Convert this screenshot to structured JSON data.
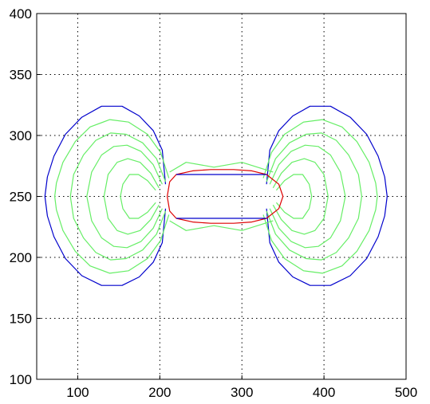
{
  "chart_data": {
    "type": "line",
    "title": "",
    "xlabel": "",
    "ylabel": "",
    "xlim": [
      50,
      500
    ],
    "ylim": [
      100,
      400
    ],
    "grid": true,
    "x_ticks": [
      100,
      200,
      300,
      400,
      500
    ],
    "y_ticks": [
      100,
      150,
      200,
      250,
      300,
      350,
      400
    ],
    "x_tick_labels": [
      "100",
      "200",
      "300",
      "400",
      "500"
    ],
    "y_tick_labels": [
      "100",
      "150",
      "200",
      "250",
      "300",
      "350",
      "400"
    ],
    "colors": {
      "outer_boundary": "#0000cc",
      "level_sets": "#66ee66",
      "inner_boundary": "#dd0000"
    },
    "series": [
      {
        "color": "#0000cc",
        "points": [
          [
            330,
            240
          ],
          [
            334,
            212
          ],
          [
            345,
            196
          ],
          [
            362,
            184
          ],
          [
            383,
            177
          ],
          [
            408,
            177
          ],
          [
            432,
            185
          ],
          [
            452,
            199
          ],
          [
            466,
            217
          ],
          [
            474,
            234
          ],
          [
            477,
            250
          ],
          [
            474,
            266
          ],
          [
            466,
            283
          ],
          [
            452,
            301
          ],
          [
            432,
            315
          ],
          [
            408,
            324
          ],
          [
            383,
            324
          ],
          [
            362,
            316
          ],
          [
            345,
            304
          ],
          [
            334,
            288
          ],
          [
            330,
            260
          ]
        ]
      },
      {
        "color": "#0000cc",
        "points": [
          [
            207,
            240
          ],
          [
            203,
            212
          ],
          [
            192,
            196
          ],
          [
            175,
            184
          ],
          [
            154,
            177
          ],
          [
            129,
            177
          ],
          [
            105,
            185
          ],
          [
            85,
            199
          ],
          [
            71,
            217
          ],
          [
            63,
            234
          ],
          [
            60,
            250
          ],
          [
            63,
            266
          ],
          [
            71,
            283
          ],
          [
            85,
            301
          ],
          [
            105,
            315
          ],
          [
            129,
            324
          ],
          [
            154,
            324
          ],
          [
            175,
            316
          ],
          [
            192,
            304
          ],
          [
            203,
            288
          ],
          [
            207,
            260
          ]
        ]
      },
      {
        "color": "#66ee66",
        "points": [
          [
            212,
            230
          ],
          [
            232,
            222
          ],
          [
            266,
            226
          ],
          [
            300,
            222
          ],
          [
            338,
            230
          ]
        ]
      },
      {
        "color": "#66ee66",
        "points": [
          [
            212,
            270
          ],
          [
            232,
            278
          ],
          [
            266,
            274
          ],
          [
            300,
            278
          ],
          [
            338,
            270
          ]
        ]
      },
      {
        "color": "#66ee66",
        "points": [
          [
            326,
            235
          ],
          [
            336,
            214
          ],
          [
            352,
            199
          ],
          [
            375,
            189
          ],
          [
            398,
            187
          ],
          [
            422,
            193
          ],
          [
            440,
            205
          ],
          [
            455,
            222
          ],
          [
            463,
            239
          ],
          [
            465,
            250
          ],
          [
            463,
            261
          ],
          [
            455,
            278
          ],
          [
            440,
            295
          ],
          [
            422,
            307
          ],
          [
            398,
            313
          ],
          [
            375,
            311
          ],
          [
            352,
            301
          ],
          [
            336,
            286
          ],
          [
            326,
            265
          ]
        ]
      },
      {
        "color": "#66ee66",
        "points": [
          [
            330,
            238
          ],
          [
            341,
            219
          ],
          [
            358,
            206
          ],
          [
            378,
            199
          ],
          [
            397,
            198
          ],
          [
            415,
            204
          ],
          [
            430,
            216
          ],
          [
            442,
            232
          ],
          [
            446,
            250
          ],
          [
            442,
            268
          ],
          [
            430,
            284
          ],
          [
            415,
            296
          ],
          [
            397,
            302
          ],
          [
            378,
            301
          ],
          [
            358,
            294
          ],
          [
            341,
            281
          ],
          [
            330,
            262
          ]
        ]
      },
      {
        "color": "#66ee66",
        "points": [
          [
            334,
            240
          ],
          [
            345,
            224
          ],
          [
            360,
            213
          ],
          [
            377,
            208
          ],
          [
            393,
            209
          ],
          [
            408,
            216
          ],
          [
            420,
            230
          ],
          [
            426,
            250
          ],
          [
            420,
            270
          ],
          [
            408,
            284
          ],
          [
            393,
            291
          ],
          [
            377,
            292
          ],
          [
            360,
            287
          ],
          [
            345,
            276
          ],
          [
            334,
            260
          ]
        ]
      },
      {
        "color": "#66ee66",
        "points": [
          [
            338,
            243
          ],
          [
            348,
            231
          ],
          [
            361,
            222
          ],
          [
            376,
            219
          ],
          [
            389,
            222
          ],
          [
            400,
            232
          ],
          [
            405,
            250
          ],
          [
            400,
            268
          ],
          [
            389,
            278
          ],
          [
            376,
            281
          ],
          [
            361,
            278
          ],
          [
            348,
            269
          ],
          [
            338,
            257
          ]
        ]
      },
      {
        "color": "#66ee66",
        "points": [
          [
            342,
            245
          ],
          [
            352,
            237
          ],
          [
            363,
            232
          ],
          [
            374,
            232
          ],
          [
            382,
            240
          ],
          [
            385,
            250
          ],
          [
            382,
            260
          ],
          [
            374,
            268
          ],
          [
            363,
            268
          ],
          [
            352,
            263
          ],
          [
            342,
            255
          ]
        ]
      },
      {
        "color": "#66ee66",
        "points": [
          [
            211,
            235
          ],
          [
            201,
            214
          ],
          [
            185,
            199
          ],
          [
            162,
            189
          ],
          [
            139,
            187
          ],
          [
            115,
            193
          ],
          [
            97,
            205
          ],
          [
            82,
            222
          ],
          [
            74,
            239
          ],
          [
            72,
            250
          ],
          [
            74,
            261
          ],
          [
            82,
            278
          ],
          [
            97,
            295
          ],
          [
            115,
            307
          ],
          [
            139,
            313
          ],
          [
            162,
            311
          ],
          [
            185,
            301
          ],
          [
            201,
            286
          ],
          [
            211,
            265
          ]
        ]
      },
      {
        "color": "#66ee66",
        "points": [
          [
            207,
            238
          ],
          [
            196,
            219
          ],
          [
            179,
            206
          ],
          [
            159,
            199
          ],
          [
            140,
            198
          ],
          [
            122,
            204
          ],
          [
            107,
            216
          ],
          [
            95,
            232
          ],
          [
            91,
            250
          ],
          [
            95,
            268
          ],
          [
            107,
            284
          ],
          [
            122,
            296
          ],
          [
            140,
            302
          ],
          [
            159,
            301
          ],
          [
            179,
            294
          ],
          [
            196,
            281
          ],
          [
            207,
            262
          ]
        ]
      },
      {
        "color": "#66ee66",
        "points": [
          [
            203,
            240
          ],
          [
            192,
            224
          ],
          [
            177,
            213
          ],
          [
            160,
            208
          ],
          [
            144,
            209
          ],
          [
            129,
            216
          ],
          [
            117,
            230
          ],
          [
            111,
            250
          ],
          [
            117,
            270
          ],
          [
            129,
            284
          ],
          [
            144,
            291
          ],
          [
            160,
            292
          ],
          [
            177,
            287
          ],
          [
            192,
            276
          ],
          [
            203,
            260
          ]
        ]
      },
      {
        "color": "#66ee66",
        "points": [
          [
            199,
            243
          ],
          [
            189,
            231
          ],
          [
            176,
            222
          ],
          [
            161,
            219
          ],
          [
            148,
            222
          ],
          [
            137,
            232
          ],
          [
            132,
            250
          ],
          [
            137,
            268
          ],
          [
            148,
            278
          ],
          [
            161,
            281
          ],
          [
            176,
            278
          ],
          [
            189,
            269
          ],
          [
            199,
            257
          ]
        ]
      },
      {
        "color": "#66ee66",
        "points": [
          [
            195,
            245
          ],
          [
            185,
            237
          ],
          [
            174,
            232
          ],
          [
            163,
            232
          ],
          [
            155,
            240
          ],
          [
            152,
            250
          ],
          [
            155,
            260
          ],
          [
            163,
            268
          ],
          [
            174,
            268
          ],
          [
            185,
            263
          ],
          [
            195,
            255
          ]
        ]
      },
      {
        "color": "#dd0000",
        "points": [
          [
            220,
            232
          ],
          [
            240,
            229
          ],
          [
            262,
            228
          ],
          [
            290,
            228
          ],
          [
            312,
            229
          ],
          [
            330,
            232
          ],
          [
            345,
            240
          ],
          [
            350,
            250
          ],
          [
            345,
            260
          ],
          [
            330,
            268
          ],
          [
            312,
            271
          ],
          [
            290,
            272
          ],
          [
            262,
            272
          ],
          [
            240,
            271
          ],
          [
            220,
            268
          ],
          [
            212,
            262
          ],
          [
            209,
            250
          ],
          [
            212,
            238
          ],
          [
            220,
            232
          ]
        ]
      },
      {
        "color": "#0000cc",
        "points": [
          [
            220,
            268
          ],
          [
            330,
            268
          ]
        ]
      },
      {
        "color": "#0000cc",
        "points": [
          [
            220,
            232
          ],
          [
            330,
            232
          ]
        ]
      }
    ]
  }
}
